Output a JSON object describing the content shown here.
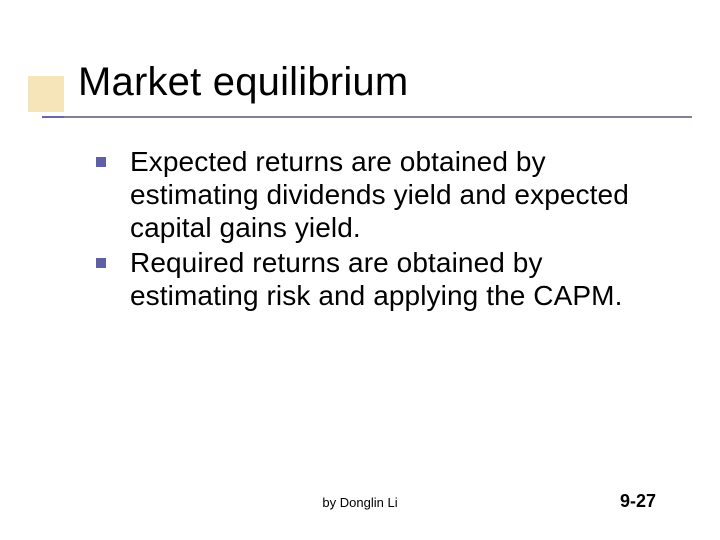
{
  "slide": {
    "title": "Market equilibrium",
    "bullets": [
      "Expected returns are obtained by estimating dividends yield and expected capital gains yield.",
      "Required returns are obtained by estimating risk and applying the CAPM."
    ],
    "footer_author": "by Donglin Li",
    "footer_page": "9-27"
  },
  "style": {
    "title_fontsize": 40,
    "body_fontsize": 28,
    "footer_author_fontsize": 13,
    "footer_page_fontsize": 18,
    "bullet_color": "#5f5fa6",
    "underline_short_color": "#6666b3",
    "underline_long_color": "#808099",
    "accent_block_color": "#f5e5b9",
    "background_color": "#ffffff",
    "text_color": "#000000"
  }
}
